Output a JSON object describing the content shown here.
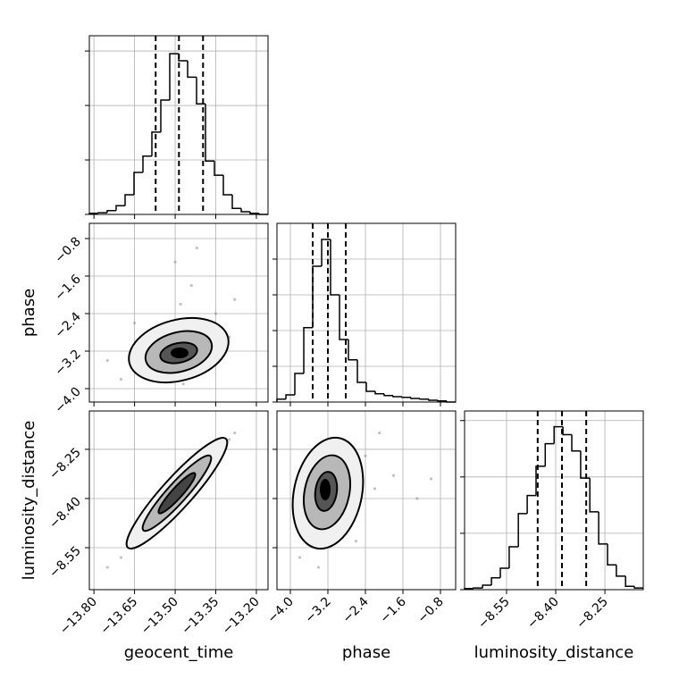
{
  "chart_data": {
    "type": "corner",
    "color": "#000000",
    "grid": true,
    "parameters": [
      "geocent_time",
      "phase",
      "luminosity_distance"
    ],
    "axes": [
      {
        "lim": [
          -13.817,
          -13.157
        ],
        "ticks": [
          {
            "value": -13.8,
            "label": "−13.80"
          },
          {
            "value": -13.65,
            "label": "−13.65"
          },
          {
            "value": -13.5,
            "label": "−13.50"
          },
          {
            "value": -13.35,
            "label": "−13.35"
          },
          {
            "value": -13.2,
            "label": "−13.20"
          }
        ]
      },
      {
        "lim": [
          -4.286,
          -0.476
        ],
        "ticks": [
          {
            "value": -4.0,
            "label": "−4.0"
          },
          {
            "value": -3.2,
            "label": "−3.2"
          },
          {
            "value": -2.4,
            "label": "−2.4"
          },
          {
            "value": -1.6,
            "label": "−1.6"
          },
          {
            "value": -0.8,
            "label": "−0.8"
          }
        ]
      },
      {
        "lim": [
          -8.678,
          -8.133
        ],
        "ticks": [
          {
            "value": -8.55,
            "label": "−8.55"
          },
          {
            "value": -8.4,
            "label": "−8.40"
          },
          {
            "value": -8.25,
            "label": "−8.25"
          }
        ]
      }
    ],
    "histograms": [
      {
        "bins": [
          -13.817,
          -13.784,
          -13.751,
          -13.718,
          -13.685,
          -13.652,
          -13.619,
          -13.586,
          -13.553,
          -13.52,
          -13.487,
          -13.454,
          -13.421,
          -13.388,
          -13.355,
          -13.322,
          -13.289,
          -13.256,
          -13.223,
          -13.19,
          -13.157
        ],
        "counts": [
          0.02,
          0.03,
          0.07,
          0.16,
          0.36,
          0.77,
          1.07,
          1.51,
          2.1,
          2.95,
          2.82,
          2.52,
          2.03,
          0.98,
          0.72,
          0.36,
          0.11,
          0.05,
          0.02,
          0.0
        ],
        "ylim": [
          0,
          3.28
        ],
        "yticks": [
          0,
          1,
          2,
          3
        ],
        "quantiles": [
          -13.572,
          -13.486,
          -13.397
        ]
      },
      {
        "bins": [
          -4.286,
          -4.095,
          -3.905,
          -3.714,
          -3.524,
          -3.333,
          -3.143,
          -2.952,
          -2.762,
          -2.571,
          -2.381,
          -2.19,
          -2.0,
          -1.81,
          -1.619,
          -1.429,
          -1.238,
          -1.048,
          -0.857,
          -0.667,
          -0.476
        ],
        "counts": [
          0.08,
          0.2,
          0.8,
          2.08,
          3.8,
          4.55,
          3.0,
          1.75,
          1.18,
          0.55,
          0.3,
          0.23,
          0.18,
          0.15,
          0.13,
          0.1,
          0.08,
          0.05,
          0.03,
          0.0
        ],
        "ylim": [
          0,
          5
        ],
        "yticks": [
          0,
          1,
          2,
          3,
          4
        ],
        "quantiles": [
          -3.524,
          -3.2,
          -2.819
        ]
      },
      {
        "bins": [
          -8.678,
          -8.651,
          -8.623,
          -8.596,
          -8.569,
          -8.542,
          -8.514,
          -8.487,
          -8.46,
          -8.432,
          -8.405,
          -8.378,
          -8.351,
          -8.324,
          -8.296,
          -8.269,
          -8.242,
          -8.215,
          -8.187,
          -8.16,
          -8.133
        ],
        "counts": [
          0.02,
          0.03,
          0.08,
          0.21,
          0.38,
          0.76,
          1.35,
          1.67,
          2.19,
          2.59,
          2.89,
          2.75,
          2.46,
          1.98,
          1.38,
          0.81,
          0.44,
          0.24,
          0.06,
          0.03
        ],
        "ylim": [
          0,
          3.17
        ],
        "yticks": [
          0,
          1,
          2,
          3
        ],
        "quantiles": [
          -8.455,
          -8.381,
          -8.307
        ]
      }
    ],
    "scatter": [
      {
        "xaxis": 0,
        "yaxis": 1,
        "x": [
          -13.52,
          -13.45,
          -13.6,
          -13.4,
          -13.55,
          -13.48,
          -13.7,
          -13.35,
          -13.62,
          -13.44,
          -13.3,
          -13.58,
          -13.5,
          -13.75,
          -13.38,
          -13.47,
          -13.65,
          -13.42,
          -13.28,
          -13.56
        ],
        "y": [
          -3.1,
          -2.9,
          -3.5,
          -2.6,
          -3.4,
          -2.2,
          -3.8,
          -2.4,
          -3.0,
          -1.8,
          -2.9,
          -3.7,
          -1.3,
          -3.4,
          -3.3,
          -3.9,
          -2.6,
          -1.0,
          -2.1,
          -2.8
        ]
      },
      {
        "xaxis": 0,
        "yaxis": 2,
        "x": [
          -13.52,
          -13.45,
          -13.6,
          -13.4,
          -13.55,
          -13.48,
          -13.7,
          -13.35,
          -13.62,
          -13.44,
          -13.3,
          -13.58,
          -13.5,
          -13.75,
          -13.38,
          -13.47,
          -13.65,
          -13.42,
          -13.28,
          -13.56
        ],
        "y": [
          -8.41,
          -8.35,
          -8.48,
          -8.31,
          -8.45,
          -8.37,
          -8.58,
          -8.27,
          -8.51,
          -8.33,
          -8.22,
          -8.46,
          -8.4,
          -8.61,
          -8.3,
          -8.39,
          -8.53,
          -8.34,
          -8.2,
          -8.44
        ]
      },
      {
        "xaxis": 1,
        "yaxis": 2,
        "x": [
          -3.1,
          -2.9,
          -3.5,
          -2.6,
          -3.4,
          -2.2,
          -3.8,
          -2.4,
          -3.0,
          -1.8,
          -2.9,
          -3.7,
          -1.3,
          -3.4,
          -3.3,
          -3.9,
          -2.6,
          -1.0,
          -2.1,
          -2.8
        ],
        "y": [
          -8.41,
          -8.35,
          -8.48,
          -8.31,
          -8.45,
          -8.37,
          -8.58,
          -8.27,
          -8.51,
          -8.33,
          -8.22,
          -8.46,
          -8.4,
          -8.61,
          -8.3,
          -8.39,
          -8.53,
          -8.34,
          -8.2,
          -8.44
        ]
      }
    ]
  }
}
